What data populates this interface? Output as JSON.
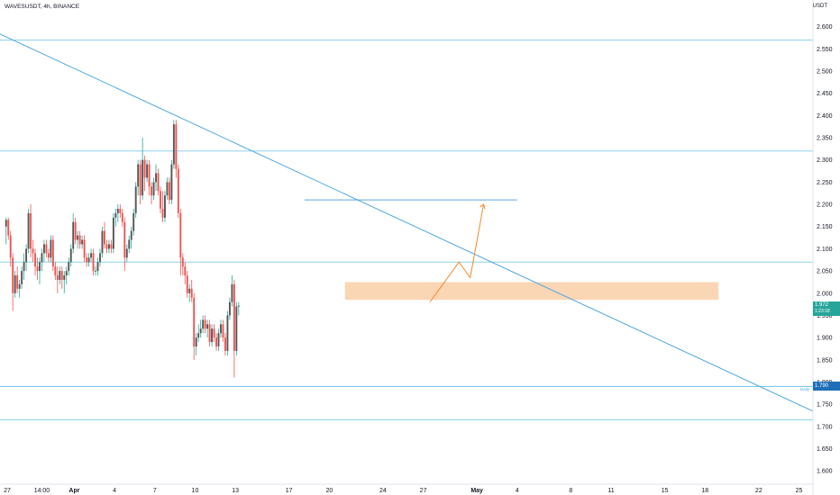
{
  "header": {
    "symbol": "WAVESUSDT, 4h, BINANCE",
    "unit": "USDT"
  },
  "colors": {
    "up": "#26a69a",
    "down": "#ef5350",
    "candle": "#555555",
    "level": "#7ecbe8",
    "trend": "#4ea7e0",
    "zone": "#f9cfa8",
    "projection": "#f28a2e"
  },
  "price_tags": {
    "last": {
      "value": "1.972",
      "sub": "1:23:18",
      "color": "#26a69a"
    },
    "daily": {
      "value": "1.790",
      "label": "Daily",
      "color": "#1e6fb8"
    }
  },
  "chart_data": {
    "type": "candlestick",
    "symbol": "WAVESUSDT",
    "interval": "4h",
    "exchange": "BINANCE",
    "y_axis": {
      "min": 1.57,
      "max": 2.66,
      "ticks": [
        2.6,
        2.55,
        2.5,
        2.45,
        2.4,
        2.35,
        2.3,
        2.25,
        2.2,
        2.15,
        2.1,
        2.05,
        2.0,
        1.95,
        1.9,
        1.85,
        1.8,
        1.75,
        1.7,
        1.65,
        1.6
      ],
      "labels": [
        "2.600",
        "2.550",
        "2.500",
        "2.450",
        "2.400",
        "2.350",
        "2.300",
        "2.250",
        "2.200",
        "2.150",
        "2.100",
        "2.050",
        "2.000",
        "1.950",
        "1.900",
        "1.850",
        "1.800",
        "1.750",
        "1.700",
        "1.650",
        "1.600"
      ]
    },
    "x_axis": {
      "start": "2020-03-27",
      "end": "2020-05-26",
      "ticks": [
        {
          "date": "2020-03-27T00:00",
          "label": "27"
        },
        {
          "date": "2020-03-29T14:00",
          "label": "14:00"
        },
        {
          "date": "2020-04-01",
          "label": "Apr"
        },
        {
          "date": "2020-04-04",
          "label": "4"
        },
        {
          "date": "2020-04-07",
          "label": "7"
        },
        {
          "date": "2020-04-10",
          "label": "10"
        },
        {
          "date": "2020-04-13",
          "label": "13"
        },
        {
          "date": "2020-04-17",
          "label": "17"
        },
        {
          "date": "2020-04-20",
          "label": "20"
        },
        {
          "date": "2020-04-24",
          "label": "24"
        },
        {
          "date": "2020-04-27",
          "label": "27"
        },
        {
          "date": "2020-05-01",
          "label": "May"
        },
        {
          "date": "2020-05-04",
          "label": "4"
        },
        {
          "date": "2020-05-08",
          "label": "8"
        },
        {
          "date": "2020-05-11",
          "label": "11"
        },
        {
          "date": "2020-05-15",
          "label": "15"
        },
        {
          "date": "2020-05-18",
          "label": "18"
        },
        {
          "date": "2020-05-22",
          "label": "22"
        },
        {
          "date": "2020-05-25",
          "label": "25"
        }
      ]
    },
    "candles_start": "2020-03-26T20:00",
    "candle_interval_hours": 4,
    "candles": [
      [
        2.15,
        2.17,
        2.11,
        2.165
      ],
      [
        2.165,
        2.17,
        2.12,
        2.13
      ],
      [
        2.13,
        2.14,
        2.06,
        2.08
      ],
      [
        2.08,
        2.09,
        1.96,
        2.0
      ],
      [
        2.0,
        2.05,
        1.99,
        2.04
      ],
      [
        2.04,
        2.06,
        2.0,
        2.01
      ],
      [
        2.01,
        2.03,
        1.99,
        2.02
      ],
      [
        2.02,
        2.06,
        2.01,
        2.05
      ],
      [
        2.05,
        2.09,
        2.03,
        2.07
      ],
      [
        2.07,
        2.11,
        2.05,
        2.1
      ],
      [
        2.1,
        2.19,
        2.09,
        2.18
      ],
      [
        2.18,
        2.2,
        2.08,
        2.1
      ],
      [
        2.1,
        2.12,
        2.07,
        2.09
      ],
      [
        2.09,
        2.1,
        2.04,
        2.06
      ],
      [
        2.06,
        2.08,
        2.03,
        2.05
      ],
      [
        2.05,
        2.08,
        2.02,
        2.07
      ],
      [
        2.07,
        2.1,
        2.05,
        2.09
      ],
      [
        2.09,
        2.12,
        2.07,
        2.11
      ],
      [
        2.11,
        2.12,
        2.08,
        2.09
      ],
      [
        2.09,
        2.1,
        2.07,
        2.08
      ],
      [
        2.08,
        2.13,
        2.07,
        2.12
      ],
      [
        2.12,
        2.13,
        2.05,
        2.06
      ],
      [
        2.06,
        2.07,
        2.03,
        2.04
      ],
      [
        2.04,
        2.06,
        2.0,
        2.03
      ],
      [
        2.03,
        2.06,
        2.02,
        2.05
      ],
      [
        2.05,
        2.06,
        2.01,
        2.03
      ],
      [
        2.03,
        2.05,
        2.0,
        2.04
      ],
      [
        2.04,
        2.06,
        2.02,
        2.05
      ],
      [
        2.05,
        2.08,
        2.04,
        2.07
      ],
      [
        2.07,
        2.11,
        2.06,
        2.1
      ],
      [
        2.1,
        2.18,
        2.09,
        2.16
      ],
      [
        2.16,
        2.17,
        2.11,
        2.12
      ],
      [
        2.12,
        2.14,
        2.1,
        2.13
      ],
      [
        2.13,
        2.14,
        2.1,
        2.11
      ],
      [
        2.11,
        2.13,
        2.1,
        2.12
      ],
      [
        2.12,
        2.13,
        2.07,
        2.08
      ],
      [
        2.08,
        2.09,
        2.06,
        2.07
      ],
      [
        2.07,
        2.09,
        2.06,
        2.08
      ],
      [
        2.08,
        2.1,
        2.07,
        2.09
      ],
      [
        2.09,
        2.1,
        2.04,
        2.05
      ],
      [
        2.05,
        2.06,
        2.04,
        2.05
      ],
      [
        2.05,
        2.08,
        2.04,
        2.07
      ],
      [
        2.07,
        2.1,
        2.06,
        2.09
      ],
      [
        2.09,
        2.15,
        2.08,
        2.14
      ],
      [
        2.14,
        2.16,
        2.1,
        2.11
      ],
      [
        2.11,
        2.12,
        2.09,
        2.1
      ],
      [
        2.1,
        2.12,
        2.09,
        2.11
      ],
      [
        2.11,
        2.12,
        2.09,
        2.1
      ],
      [
        2.1,
        2.18,
        2.09,
        2.17
      ],
      [
        2.17,
        2.19,
        2.15,
        2.18
      ],
      [
        2.18,
        2.2,
        2.16,
        2.19
      ],
      [
        2.19,
        2.2,
        2.17,
        2.18
      ],
      [
        2.18,
        2.19,
        2.15,
        2.16
      ],
      [
        2.16,
        2.17,
        2.05,
        2.08
      ],
      [
        2.08,
        2.11,
        2.07,
        2.1
      ],
      [
        2.1,
        2.13,
        2.09,
        2.12
      ],
      [
        2.12,
        2.15,
        2.1,
        2.14
      ],
      [
        2.14,
        2.19,
        2.13,
        2.18
      ],
      [
        2.18,
        2.25,
        2.17,
        2.24
      ],
      [
        2.24,
        2.3,
        2.22,
        2.29
      ],
      [
        2.29,
        2.3,
        2.2,
        2.22
      ],
      [
        2.22,
        2.35,
        2.21,
        2.3
      ],
      [
        2.3,
        2.31,
        2.23,
        2.26
      ],
      [
        2.26,
        2.3,
        2.25,
        2.29
      ],
      [
        2.29,
        2.3,
        2.22,
        2.24
      ],
      [
        2.24,
        2.25,
        2.2,
        2.22
      ],
      [
        2.22,
        2.26,
        2.21,
        2.25
      ],
      [
        2.25,
        2.29,
        2.23,
        2.27
      ],
      [
        2.27,
        2.28,
        2.22,
        2.23
      ],
      [
        2.23,
        2.24,
        2.18,
        2.19
      ],
      [
        2.19,
        2.23,
        2.16,
        2.17
      ],
      [
        2.17,
        2.23,
        2.16,
        2.22
      ],
      [
        2.22,
        2.26,
        2.21,
        2.25
      ],
      [
        2.25,
        2.26,
        2.2,
        2.21
      ],
      [
        2.21,
        2.3,
        2.2,
        2.29
      ],
      [
        2.29,
        2.39,
        2.28,
        2.38
      ],
      [
        2.38,
        2.39,
        2.26,
        2.28
      ],
      [
        2.28,
        2.29,
        2.17,
        2.18
      ],
      [
        2.18,
        2.19,
        2.04,
        2.08
      ],
      [
        2.08,
        2.09,
        2.04,
        2.06
      ],
      [
        2.06,
        2.07,
        2.02,
        2.04
      ],
      [
        2.04,
        2.05,
        1.99,
        2.0
      ],
      [
        2.0,
        2.02,
        1.98,
        2.01
      ],
      [
        2.01,
        2.03,
        1.98,
        1.99
      ],
      [
        1.99,
        2.0,
        1.85,
        1.88
      ],
      [
        1.88,
        1.91,
        1.86,
        1.9
      ],
      [
        1.9,
        1.93,
        1.89,
        1.91
      ],
      [
        1.91,
        1.94,
        1.9,
        1.92
      ],
      [
        1.92,
        1.95,
        1.91,
        1.94
      ],
      [
        1.94,
        1.95,
        1.91,
        1.92
      ],
      [
        1.92,
        1.94,
        1.9,
        1.93
      ],
      [
        1.93,
        1.94,
        1.88,
        1.89
      ],
      [
        1.89,
        1.93,
        1.88,
        1.92
      ],
      [
        1.92,
        1.93,
        1.89,
        1.9
      ],
      [
        1.9,
        1.91,
        1.87,
        1.88
      ],
      [
        1.88,
        1.92,
        1.87,
        1.91
      ],
      [
        1.91,
        1.94,
        1.9,
        1.93
      ],
      [
        1.93,
        1.94,
        1.89,
        1.9
      ],
      [
        1.9,
        1.91,
        1.86,
        1.87
      ],
      [
        1.87,
        1.96,
        1.86,
        1.95
      ],
      [
        1.95,
        1.99,
        1.94,
        1.98
      ],
      [
        1.98,
        2.04,
        1.97,
        2.02
      ],
      [
        2.02,
        2.03,
        1.81,
        1.87
      ],
      [
        1.87,
        1.98,
        1.86,
        1.97
      ],
      [
        1.97,
        1.98,
        1.95,
        1.972
      ]
    ],
    "annotations": {
      "horizontal_levels": [
        2.57,
        2.32,
        2.07,
        1.79,
        1.715
      ],
      "short_level": {
        "value": 2.21,
        "from": "2020-04-18T04:00",
        "to": "2020-05-04"
      },
      "zone": {
        "from_price": 2.025,
        "to_price": 1.985,
        "from": "2020-04-21T04:00",
        "to": "2020-05-19"
      },
      "trendline": {
        "from": {
          "date": "2020-03-21",
          "value": 2.66
        },
        "to": {
          "date": "2020-05-26",
          "value": 1.735
        }
      },
      "projection": [
        {
          "date": "2020-04-27T12:00",
          "value": 1.98
        },
        {
          "date": "2020-04-29T16:00",
          "value": 2.07
        },
        {
          "date": "2020-04-30T12:00",
          "value": 2.035
        },
        {
          "date": "2020-05-01T12:00",
          "value": 2.2
        }
      ]
    }
  }
}
